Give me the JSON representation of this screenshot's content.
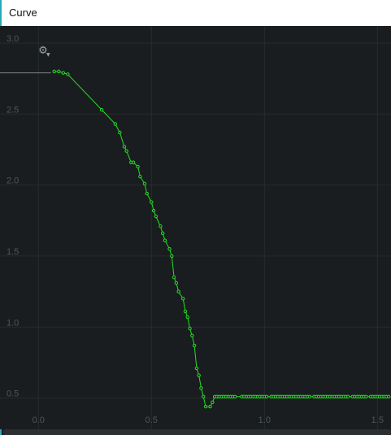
{
  "window": {
    "title": "Curve"
  },
  "toolbar": {
    "settings_icon": "gear-icon",
    "dropdown_icon": "chevron-down-icon"
  },
  "colors": {
    "background": "#1a1d1f",
    "grid": "#262b2d",
    "curve": "#22e022",
    "tick_text": "#4e5558"
  },
  "chart_data": {
    "type": "line",
    "title": "",
    "xlabel": "",
    "ylabel": "",
    "grid": true,
    "x_ticks": [
      "0.0",
      "0.5",
      "1.0",
      "1.5"
    ],
    "y_ticks": [
      "0.5",
      "1.0",
      "1.5",
      "2.0",
      "2.5",
      "3.0"
    ],
    "xlim": [
      -0.17,
      1.56
    ],
    "ylim": [
      0.28,
      3.12
    ],
    "baseline_y": 2.79,
    "series": [
      {
        "x": [
          0.07,
          0.09,
          0.11,
          0.13,
          0.28,
          0.34,
          0.36,
          0.38,
          0.39,
          0.41,
          0.42,
          0.44,
          0.45,
          0.47,
          0.48,
          0.5,
          0.51,
          0.52,
          0.54,
          0.55,
          0.56,
          0.58,
          0.59,
          0.6,
          0.61,
          0.62,
          0.64,
          0.65,
          0.66,
          0.67,
          0.68,
          0.69,
          0.7,
          0.71,
          0.72,
          0.73,
          0.74,
          0.76,
          0.77,
          0.78,
          0.79,
          0.8,
          0.81,
          0.82,
          0.83,
          0.84,
          0.85,
          0.86,
          0.87,
          0.9,
          0.91,
          0.92,
          0.93,
          0.94,
          0.95,
          0.96,
          0.97,
          0.98,
          0.99,
          1.0,
          1.01,
          1.03,
          1.04,
          1.05,
          1.06,
          1.07,
          1.08,
          1.09,
          1.1,
          1.11,
          1.12,
          1.13,
          1.14,
          1.15,
          1.16,
          1.17,
          1.18,
          1.19,
          1.2,
          1.22,
          1.23,
          1.24,
          1.25,
          1.26,
          1.27,
          1.28,
          1.29,
          1.3,
          1.31,
          1.32,
          1.33,
          1.34,
          1.35,
          1.36,
          1.37,
          1.39,
          1.4,
          1.41,
          1.42,
          1.43,
          1.44,
          1.45,
          1.47,
          1.48,
          1.49,
          1.5,
          1.51,
          1.52,
          1.53,
          1.54,
          1.55
        ],
        "y": [
          2.8,
          2.8,
          2.79,
          2.78,
          2.53,
          2.43,
          2.37,
          2.27,
          2.24,
          2.16,
          2.16,
          2.13,
          2.06,
          2.01,
          1.94,
          1.88,
          1.82,
          1.78,
          1.71,
          1.66,
          1.61,
          1.55,
          1.5,
          1.35,
          1.31,
          1.25,
          1.2,
          1.11,
          1.07,
          0.99,
          0.94,
          0.87,
          0.71,
          0.66,
          0.57,
          0.51,
          0.44,
          0.44,
          0.47,
          0.51,
          0.51,
          0.51,
          0.51,
          0.51,
          0.51,
          0.51,
          0.51,
          0.51,
          0.51,
          0.51,
          0.51,
          0.51,
          0.51,
          0.51,
          0.51,
          0.51,
          0.51,
          0.51,
          0.51,
          0.51,
          0.51,
          0.51,
          0.51,
          0.51,
          0.51,
          0.51,
          0.51,
          0.51,
          0.51,
          0.51,
          0.51,
          0.51,
          0.51,
          0.51,
          0.51,
          0.51,
          0.51,
          0.51,
          0.51,
          0.51,
          0.51,
          0.51,
          0.51,
          0.51,
          0.51,
          0.51,
          0.51,
          0.51,
          0.51,
          0.51,
          0.51,
          0.51,
          0.51,
          0.51,
          0.51,
          0.51,
          0.51,
          0.51,
          0.51,
          0.51,
          0.51,
          0.51,
          0.51,
          0.51,
          0.51,
          0.51,
          0.51,
          0.51,
          0.51,
          0.51,
          0.51
        ]
      }
    ]
  }
}
